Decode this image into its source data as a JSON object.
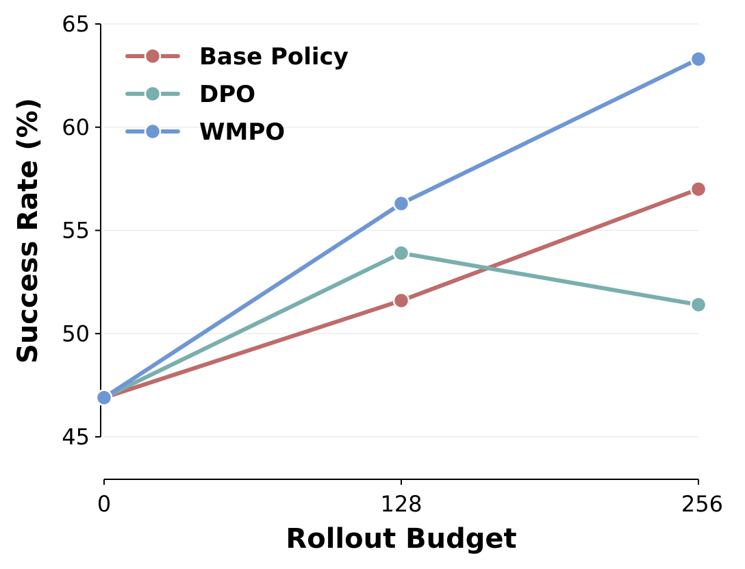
{
  "chart_data": {
    "type": "line",
    "x": [
      0,
      128,
      256
    ],
    "xticks": [
      "0",
      "128",
      "256"
    ],
    "yticks": [
      "45",
      "50",
      "55",
      "60",
      "65"
    ],
    "ylim": [
      45,
      65
    ],
    "xlabel": "Rollout Budget",
    "ylabel": "Success Rate (%)",
    "grid": "horizontal",
    "legend_position": "top-left",
    "series": [
      {
        "name": "Base Policy",
        "color": "#BF6B6B",
        "values": [
          46.9,
          51.6,
          57.0
        ]
      },
      {
        "name": "DPO",
        "color": "#79AFAE",
        "values": [
          46.9,
          53.9,
          51.4
        ]
      },
      {
        "name": "WMPO",
        "color": "#6F96D4",
        "values": [
          46.9,
          56.3,
          63.3
        ]
      }
    ]
  }
}
